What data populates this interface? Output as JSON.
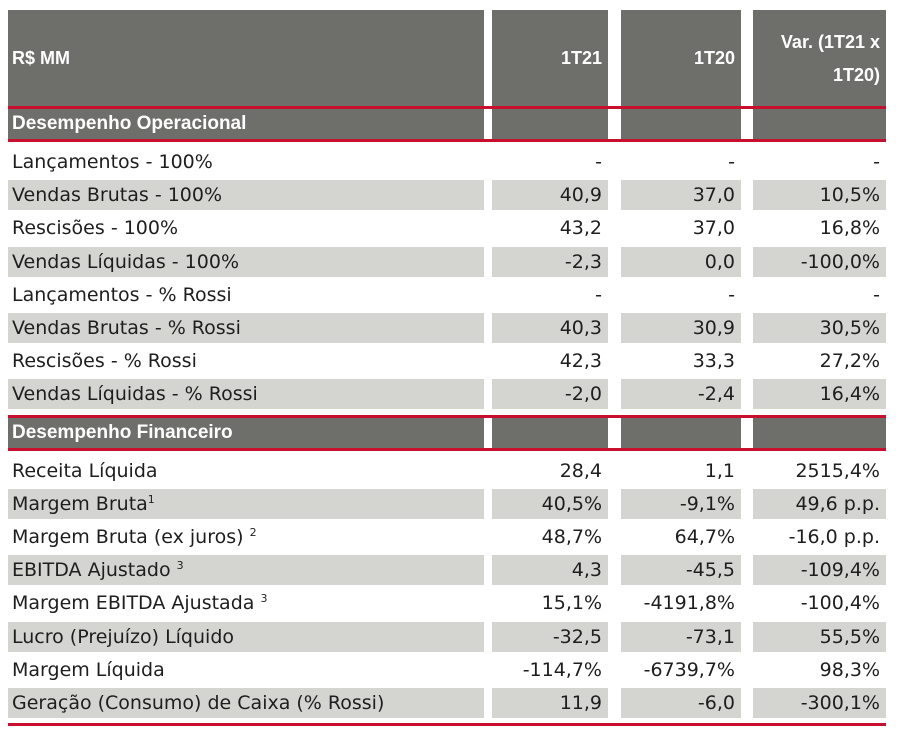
{
  "header": {
    "label": "R$ MM",
    "col1": "1T21",
    "col2": "1T20",
    "col3": "Var. (1T21 x 1T20)"
  },
  "sections": [
    {
      "title": "Desempenho Operacional",
      "rows": [
        {
          "label": "Lançamentos - 100%",
          "sup": "",
          "v1": "-",
          "v2": "-",
          "v3": "-"
        },
        {
          "label": "Vendas Brutas - 100%",
          "sup": "",
          "v1": "40,9",
          "v2": "37,0",
          "v3": "10,5%"
        },
        {
          "label": "Rescisões - 100%",
          "sup": "",
          "v1": "43,2",
          "v2": "37,0",
          "v3": "16,8%"
        },
        {
          "label": "Vendas Líquidas - 100%",
          "sup": "",
          "v1": "-2,3",
          "v2": "0,0",
          "v3": "-100,0%"
        },
        {
          "label": "Lançamentos - % Rossi",
          "sup": "",
          "v1": "-",
          "v2": "-",
          "v3": "-"
        },
        {
          "label": "Vendas Brutas - % Rossi",
          "sup": "",
          "v1": "40,3",
          "v2": "30,9",
          "v3": "30,5%"
        },
        {
          "label": "Rescisões - % Rossi",
          "sup": "",
          "v1": "42,3",
          "v2": "33,3",
          "v3": "27,2%"
        },
        {
          "label": "Vendas Líquidas - % Rossi",
          "sup": "",
          "v1": "-2,0",
          "v2": "-2,4",
          "v3": "16,4%"
        }
      ]
    },
    {
      "title": "Desempenho Financeiro",
      "rows": [
        {
          "label": "Receita Líquida",
          "sup": "",
          "v1": "28,4",
          "v2": "1,1",
          "v3": "2515,4%"
        },
        {
          "label": "Margem Bruta",
          "sup": "1",
          "v1": "40,5%",
          "v2": "-9,1%",
          "v3": "49,6 p.p."
        },
        {
          "label": "Margem Bruta (ex juros) ",
          "sup": "2",
          "v1": "48,7%",
          "v2": "64,7%",
          "v3": "-16,0 p.p."
        },
        {
          "label": "EBITDA Ajustado ",
          "sup": "3",
          "v1": "4,3",
          "v2": "-45,5",
          "v3": "-109,4%"
        },
        {
          "label": "Margem EBITDA Ajustada ",
          "sup": "3",
          "v1": "15,1%",
          "v2": "-4191,8%",
          "v3": "-100,4%"
        },
        {
          "label": "Lucro (Prejuízo) Líquido",
          "sup": "",
          "v1": "-32,5",
          "v2": "-73,1",
          "v3": "55,5%"
        },
        {
          "label": "Margem Líquida",
          "sup": "",
          "v1": "-114,7%",
          "v2": "-6739,7%",
          "v3": "98,3%"
        },
        {
          "label": "Geração (Consumo) de Caixa (% Rossi)",
          "sup": "",
          "v1": "11,9",
          "v2": "-6,0",
          "v3": "-300,1%"
        }
      ]
    }
  ],
  "colors": {
    "header_bg": "#6e6e6a",
    "row_shade": "#d4d4d0",
    "accent_line": "#c8102e"
  }
}
